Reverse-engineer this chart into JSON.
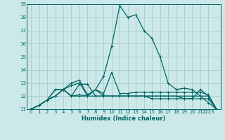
{
  "xlabel": "Humidex (Indice chaleur)",
  "ylabel": "",
  "bg_color": "#cce8e8",
  "grid_color": "#aacccc",
  "line_color": "#006666",
  "xlim": [
    -0.5,
    23.5
  ],
  "ylim": [
    11,
    19
  ],
  "xtick_labels": [
    "0",
    "1",
    "2",
    "3",
    "4",
    "5",
    "6",
    "7",
    "8",
    "9",
    "10",
    "11",
    "12",
    "13",
    "14",
    "15",
    "16",
    "17",
    "18",
    "19",
    "20",
    "21",
    "2223"
  ],
  "xticks": [
    0,
    1,
    2,
    3,
    4,
    5,
    6,
    7,
    8,
    9,
    10,
    11,
    12,
    13,
    14,
    15,
    16,
    17,
    18,
    19,
    20,
    21,
    22
  ],
  "yticks": [
    11,
    12,
    13,
    14,
    15,
    16,
    17,
    18,
    19
  ],
  "curves": [
    [
      11.0,
      11.3,
      11.7,
      12.0,
      12.5,
      12.0,
      12.1,
      12.0,
      12.5,
      13.5,
      15.8,
      18.9,
      18.0,
      18.2,
      17.0,
      16.4,
      15.0,
      13.0,
      12.5,
      12.6,
      12.5,
      12.0,
      11.5,
      11.0
    ],
    [
      11.0,
      11.3,
      11.7,
      12.5,
      12.5,
      13.0,
      13.2,
      12.1,
      12.5,
      12.2,
      13.8,
      12.2,
      12.2,
      12.3,
      12.3,
      12.3,
      12.3,
      12.3,
      12.3,
      12.3,
      12.3,
      12.3,
      12.1,
      11.0
    ],
    [
      11.0,
      11.3,
      11.7,
      12.0,
      12.5,
      12.8,
      13.0,
      12.0,
      12.0,
      12.0,
      12.0,
      12.0,
      12.0,
      12.0,
      12.0,
      12.0,
      12.0,
      12.0,
      12.0,
      11.8,
      11.8,
      12.5,
      12.0,
      11.0
    ],
    [
      11.0,
      11.3,
      11.7,
      12.5,
      12.5,
      12.0,
      12.0,
      12.0,
      12.5,
      12.0,
      12.0,
      12.0,
      12.0,
      12.0,
      12.0,
      11.8,
      11.8,
      11.8,
      11.8,
      11.8,
      11.8,
      11.8,
      11.8,
      11.0
    ],
    [
      11.0,
      11.3,
      11.7,
      12.0,
      12.5,
      12.0,
      12.9,
      12.9,
      12.0,
      12.0,
      12.0,
      12.0,
      12.0,
      12.0,
      12.0,
      12.0,
      12.0,
      12.0,
      12.0,
      12.0,
      12.0,
      12.0,
      12.0,
      11.0
    ]
  ]
}
